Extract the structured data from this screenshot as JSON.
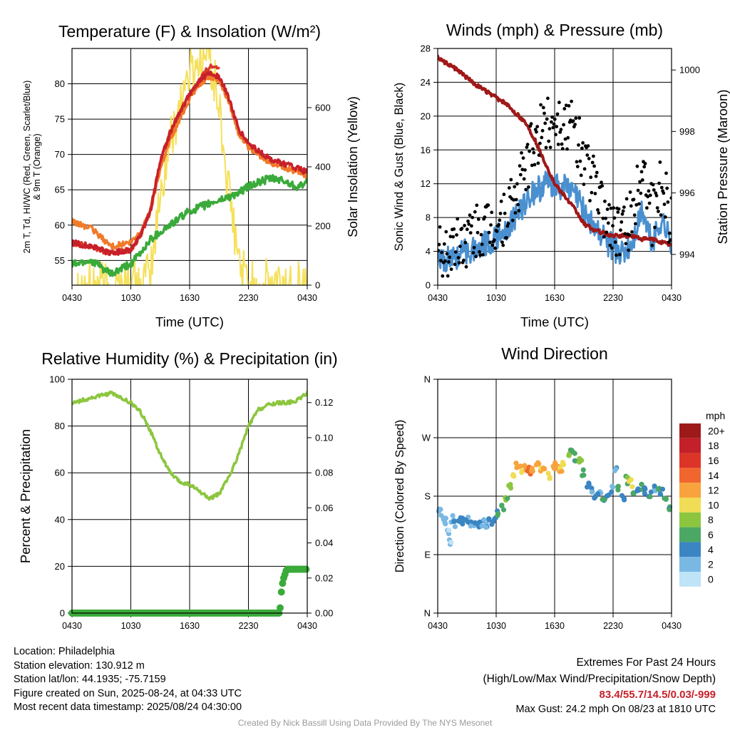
{
  "colors": {
    "temperature_red": "#c8202a",
    "temperature_scarlet": "#d63a2a",
    "heat_index_orange": "#f07a2a",
    "dewpoint_green": "#3aaa3a",
    "solar_yellow": "#f5e05a",
    "wind_blue": "#4a90d0",
    "gust_black": "#000000",
    "pressure_maroon": "#a01818",
    "humidity_green": "#8cc63f",
    "precip_green": "#3aaa3a",
    "extremes_red": "#c8202a",
    "credit_gray": "#9a9a9a"
  },
  "chart_data": [
    {
      "type": "line",
      "title": "Temperature (F) & Insolation (W/m²)",
      "xlabel": "Time (UTC)",
      "ylabel_lines": [
        "2m T, Td, HI/WC (Red, Green, Scarlet/Blue)",
        "& 9m T (Orange)"
      ],
      "y2label": "Solar Insolation (Yellow)",
      "x_ticks": [
        "0430",
        "1030",
        "1630",
        "2230",
        "0430"
      ],
      "y_ticks": [
        55,
        60,
        65,
        70,
        75,
        80
      ],
      "y2_ticks": [
        0,
        200,
        400,
        600
      ],
      "ylim": [
        51.5,
        85
      ],
      "y2lim": [
        0,
        800
      ],
      "x_hours": [
        0,
        2,
        4,
        6,
        7,
        8,
        9,
        10,
        11,
        12,
        13,
        14,
        15,
        16,
        17,
        18,
        19,
        20,
        21,
        22,
        23,
        24
      ],
      "series": [
        {
          "name": "2m T",
          "axis": "left",
          "values": [
            57.5,
            57,
            56,
            56.5,
            58.5,
            62,
            69,
            73,
            76,
            78.5,
            80.5,
            81.5,
            81,
            78,
            73.5,
            71.5,
            70.5,
            69.5,
            69,
            68.5,
            68,
            67.5
          ]
        },
        {
          "name": "HI/WC",
          "axis": "left",
          "values": [
            57.5,
            57,
            56,
            56.5,
            58.5,
            62,
            69,
            73,
            76,
            78.5,
            80.5,
            82.5,
            82.5,
            null,
            null,
            null,
            null,
            null,
            null,
            null,
            null,
            null
          ]
        },
        {
          "name": "9m T",
          "axis": "left",
          "values": [
            60.5,
            59.5,
            57,
            57.5,
            59,
            62,
            68,
            72,
            75,
            78,
            80,
            81,
            80.5,
            77.5,
            73,
            71,
            70,
            69,
            68.5,
            68,
            67.5,
            67
          ]
        },
        {
          "name": "2m Td",
          "axis": "left",
          "values": [
            54.5,
            55,
            53,
            54.5,
            56,
            58,
            59,
            60,
            61,
            62,
            62.5,
            63,
            63.5,
            64,
            64.5,
            65.5,
            66,
            66.5,
            66.5,
            66,
            65.5,
            66
          ]
        },
        {
          "name": "Solar Insolation",
          "axis": "right",
          "values": [
            0,
            0,
            0,
            0,
            0,
            30,
            300,
            480,
            620,
            720,
            760,
            780,
            600,
            300,
            80,
            0,
            0,
            0,
            0,
            0,
            0,
            0
          ]
        }
      ]
    },
    {
      "type": "line",
      "title": "Winds (mph) & Pressure (mb)",
      "xlabel": "Time (UTC)",
      "ylabel": "Sonic Wind & Gust (Blue, Black)",
      "y2label": "Station Pressure (Maroon)",
      "x_ticks": [
        "0430",
        "1030",
        "1630",
        "2230",
        "0430"
      ],
      "y_ticks": [
        0,
        4,
        8,
        12,
        16,
        20,
        24,
        28
      ],
      "y2_ticks": [
        994,
        996,
        998,
        1000
      ],
      "ylim": [
        0,
        28
      ],
      "y2lim": [
        993,
        1000.7
      ],
      "x_hours": [
        0,
        2,
        4,
        6,
        7,
        8,
        9,
        10,
        11,
        12,
        13,
        14,
        15,
        16,
        17,
        18,
        19,
        20,
        21,
        22,
        23,
        24
      ],
      "series": [
        {
          "name": "Sonic Wind",
          "axis": "left",
          "values": [
            2.5,
            3.5,
            4.5,
            5.5,
            6.5,
            8,
            10,
            11,
            12,
            12,
            11.5,
            11,
            9,
            7,
            5.5,
            4.5,
            3.5,
            5,
            9,
            5,
            8,
            5
          ]
        },
        {
          "name": "Gust",
          "axis": "left",
          "values": [
            3.5,
            5,
            6,
            7,
            8,
            10,
            14,
            17,
            19,
            20,
            19,
            18,
            15,
            12,
            9,
            7,
            6,
            8,
            15,
            8,
            12,
            7
          ]
        },
        {
          "name": "Station Pressure",
          "axis": "right",
          "values": [
            1000.4,
            1000.0,
            999.5,
            999.1,
            998.9,
            998.6,
            998.3,
            997.7,
            997.0,
            996.3,
            995.9,
            995.5,
            995.0,
            994.8,
            994.7,
            994.6,
            994.6,
            994.6,
            994.5,
            994.5,
            994.4,
            994.3
          ]
        }
      ]
    },
    {
      "type": "line",
      "title": "Relative Humidity (%) & Precipitation (in)",
      "xlabel": "",
      "ylabel": "Percent & Precipitation",
      "x_ticks": [
        "0430",
        "1030",
        "1630",
        "2230",
        "0430"
      ],
      "y_ticks": [
        0,
        20,
        40,
        60,
        80,
        100
      ],
      "y2_ticks": [
        "0.00",
        "0.02",
        "0.04",
        "0.06",
        "0.08",
        "0.10",
        "0.12"
      ],
      "ylim": [
        0,
        100
      ],
      "y2lim": [
        0,
        0.1333
      ],
      "x_hours": [
        0,
        2,
        4,
        6,
        7,
        8,
        9,
        10,
        11,
        12,
        13,
        14,
        15,
        16,
        17,
        18,
        19,
        20,
        21,
        22,
        23,
        24
      ],
      "series": [
        {
          "name": "Relative Humidity",
          "axis": "left",
          "values": [
            90,
            92,
            94,
            90,
            86,
            78,
            68,
            60,
            56,
            55,
            52,
            49,
            51,
            58,
            68,
            80,
            87,
            89,
            90,
            90,
            91,
            94
          ]
        },
        {
          "name": "Precipitation",
          "axis": "right",
          "x": [
            0,
            21.2,
            21.4,
            21.6,
            21.9,
            22.2,
            24
          ],
          "values": [
            0,
            0,
            0.015,
            0.02,
            0.025,
            0.025,
            0.025
          ]
        }
      ]
    },
    {
      "type": "scatter",
      "title": "Wind Direction",
      "ylabel": "Direction (Colored By Speed)",
      "x_ticks": [
        "0430",
        "1030",
        "1630",
        "2230",
        "0430"
      ],
      "y_ticks": [
        "N",
        "E",
        "S",
        "W",
        "N"
      ],
      "ylim": [
        0,
        360
      ],
      "colorbar_title": "mph",
      "colorbar_labels": [
        "20+",
        "18",
        "16",
        "14",
        "12",
        "10",
        "8",
        "6",
        "4",
        "2",
        "0"
      ],
      "colorbar_colors": [
        "#9e1a1a",
        "#c3202a",
        "#dc3528",
        "#f0662e",
        "#f8a33d",
        "#f0dc55",
        "#8cc63f",
        "#4aa864",
        "#3a85c2",
        "#7ab8e4",
        "#bfe3f7"
      ],
      "direction_points": [
        {
          "h": 0.2,
          "dir": 157,
          "speed": 2
        },
        {
          "h": 0.5,
          "dir": 150,
          "speed": 2
        },
        {
          "h": 0.8,
          "dir": 140,
          "speed": 1
        },
        {
          "h": 1.0,
          "dir": 125,
          "speed": 1
        },
        {
          "h": 1.2,
          "dir": 110,
          "speed": 1
        },
        {
          "h": 1.5,
          "dir": 145,
          "speed": 2
        },
        {
          "h": 1.8,
          "dir": 138,
          "speed": 3
        },
        {
          "h": 2.2,
          "dir": 142,
          "speed": 3
        },
        {
          "h": 2.6,
          "dir": 140,
          "speed": 4
        },
        {
          "h": 3.0,
          "dir": 142,
          "speed": 3
        },
        {
          "h": 3.4,
          "dir": 138,
          "speed": 3
        },
        {
          "h": 3.8,
          "dir": 136,
          "speed": 3
        },
        {
          "h": 4.2,
          "dir": 138,
          "speed": 4
        },
        {
          "h": 4.6,
          "dir": 140,
          "speed": 3
        },
        {
          "h": 5.0,
          "dir": 135,
          "speed": 3
        },
        {
          "h": 5.4,
          "dir": 140,
          "speed": 4
        },
        {
          "h": 5.8,
          "dir": 145,
          "speed": 4
        },
        {
          "h": 6.2,
          "dir": 155,
          "speed": 5
        },
        {
          "h": 6.6,
          "dir": 165,
          "speed": 6
        },
        {
          "h": 7.0,
          "dir": 178,
          "speed": 7
        },
        {
          "h": 7.4,
          "dir": 195,
          "speed": 8
        },
        {
          "h": 7.8,
          "dir": 215,
          "speed": 10
        },
        {
          "h": 8.2,
          "dir": 225,
          "speed": 12
        },
        {
          "h": 8.6,
          "dir": 222,
          "speed": 11
        },
        {
          "h": 9.0,
          "dir": 226,
          "speed": 12
        },
        {
          "h": 9.4,
          "dir": 220,
          "speed": 13
        },
        {
          "h": 9.8,
          "dir": 223,
          "speed": 12
        },
        {
          "h": 10.2,
          "dir": 227,
          "speed": 12
        },
        {
          "h": 10.6,
          "dir": 218,
          "speed": 11
        },
        {
          "h": 11.0,
          "dir": 225,
          "speed": 12
        },
        {
          "h": 11.4,
          "dir": 210,
          "speed": 10
        },
        {
          "h": 11.8,
          "dir": 222,
          "speed": 12
        },
        {
          "h": 12.2,
          "dir": 226,
          "speed": 12
        },
        {
          "h": 12.6,
          "dir": 220,
          "speed": 11
        },
        {
          "h": 13.0,
          "dir": 230,
          "speed": 10
        },
        {
          "h": 13.4,
          "dir": 240,
          "speed": 8
        },
        {
          "h": 13.8,
          "dir": 248,
          "speed": 6
        },
        {
          "h": 14.2,
          "dir": 240,
          "speed": 5
        },
        {
          "h": 14.6,
          "dir": 232,
          "speed": 8
        },
        {
          "h": 15.0,
          "dir": 215,
          "speed": 6
        },
        {
          "h": 15.4,
          "dir": 198,
          "speed": 4
        },
        {
          "h": 15.8,
          "dir": 188,
          "speed": 3
        },
        {
          "h": 16.2,
          "dir": 180,
          "speed": 4
        },
        {
          "h": 16.6,
          "dir": 185,
          "speed": 3
        },
        {
          "h": 17.0,
          "dir": 178,
          "speed": 5
        },
        {
          "h": 17.4,
          "dir": 182,
          "speed": 4
        },
        {
          "h": 17.8,
          "dir": 190,
          "speed": 3
        },
        {
          "h": 18.2,
          "dir": 225,
          "speed": 3
        },
        {
          "h": 18.6,
          "dir": 195,
          "speed": 6
        },
        {
          "h": 19.0,
          "dir": 180,
          "speed": 4
        },
        {
          "h": 19.4,
          "dir": 205,
          "speed": 7
        },
        {
          "h": 19.8,
          "dir": 200,
          "speed": 10
        },
        {
          "h": 20.2,
          "dir": 185,
          "speed": 5
        },
        {
          "h": 20.6,
          "dir": 190,
          "speed": 4
        },
        {
          "h": 21.0,
          "dir": 195,
          "speed": 6
        },
        {
          "h": 21.4,
          "dir": 188,
          "speed": 4
        },
        {
          "h": 21.8,
          "dir": 185,
          "speed": 5
        },
        {
          "h": 22.2,
          "dir": 190,
          "speed": 3
        },
        {
          "h": 22.6,
          "dir": 195,
          "speed": 5
        },
        {
          "h": 23.0,
          "dir": 188,
          "speed": 4
        },
        {
          "h": 23.4,
          "dir": 178,
          "speed": 6
        },
        {
          "h": 23.8,
          "dir": 165,
          "speed": 5
        }
      ]
    }
  ],
  "info": {
    "location": "Location: Philadelphia",
    "elevation": "Station elevation: 130.912 m",
    "latlon": "Station lat/lon: 44.1935; -75.7159",
    "created": "Figure created on Sun, 2025-08-24, at 04:33 UTC",
    "recent": "Most recent data timestamp: 2025/08/24 04:30:00"
  },
  "extremes": {
    "title": "Extremes For Past 24 Hours",
    "subtitle": "(High/Low/Max Wind/Precipitation/Snow Depth)",
    "values": "83.4/55.7/14.5/0.03/-999",
    "max_gust": "Max Gust: 24.2 mph On 08/23 at 1810 UTC"
  },
  "credit": "Created By Nick Bassill Using Data Provided By The NYS Mesonet"
}
